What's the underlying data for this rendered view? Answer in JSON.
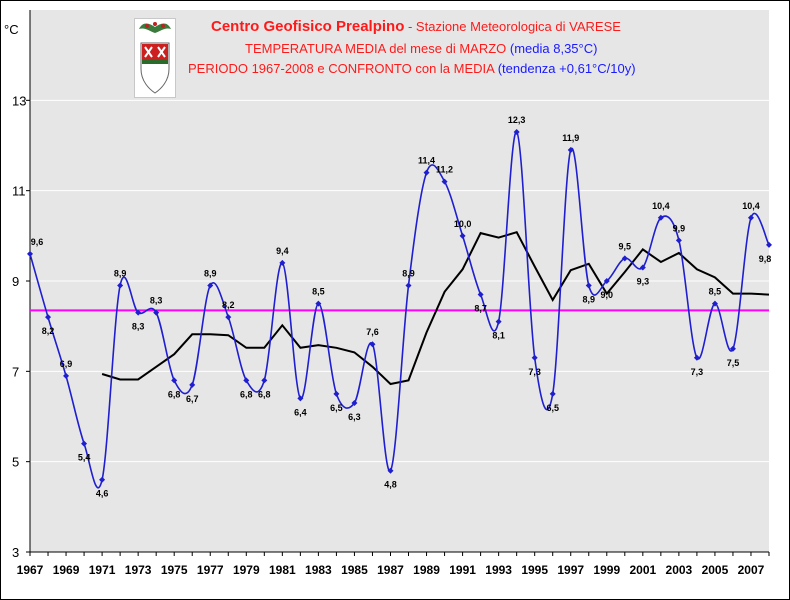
{
  "header": {
    "line1_bold": "Centro Geofisico Prealpino",
    "line1_rest": " - Stazione Meteorologica di VARESE",
    "line2_red": "TEMPERATURA MEDIA del mese di MARZO",
    "line2_blue": "(media 8,35°C)",
    "line3_red": "PERIODO 1967-2008 e CONFRONTO con la MEDIA",
    "line3_blue": "(tendenza +0,61°C/10y)"
  },
  "colors": {
    "title_red": "#ff1a1a",
    "title_blue": "#1a1aff",
    "series": "#1f1fd0",
    "moving_avg": "#000000",
    "mean_line": "#ff00ff",
    "plot_bg": "#e6e6e6"
  },
  "chart_data": {
    "type": "line",
    "unit_label": "°C",
    "ylim": [
      3,
      15
    ],
    "y_ticks": [
      3,
      5,
      7,
      9,
      11,
      13
    ],
    "xlim": [
      1967,
      2008
    ],
    "x_ticks": [
      1967,
      1969,
      1971,
      1973,
      1975,
      1977,
      1979,
      1981,
      1983,
      1985,
      1987,
      1989,
      1991,
      1993,
      1995,
      1997,
      1999,
      2001,
      2003,
      2005,
      2007
    ],
    "grid": "horizontal",
    "series": [
      {
        "x": [
          1967,
          1968,
          1969,
          1970,
          1971,
          1972,
          1973,
          1974,
          1975,
          1976,
          1977,
          1978,
          1979,
          1980,
          1981,
          1982,
          1983,
          1984,
          1985,
          1986,
          1987,
          1988,
          1989,
          1990,
          1991,
          1992,
          1993,
          1994,
          1995,
          1996,
          1997,
          1998,
          1999,
          2000,
          2001,
          2002,
          2003,
          2004,
          2005,
          2006,
          2007,
          2008
        ],
        "values": [
          9.6,
          8.2,
          6.9,
          5.4,
          4.6,
          8.9,
          8.3,
          8.3,
          6.8,
          6.7,
          8.9,
          8.2,
          6.8,
          6.8,
          9.4,
          6.4,
          8.5,
          6.5,
          6.3,
          7.6,
          4.8,
          8.9,
          11.4,
          11.2,
          10.0,
          8.7,
          8.1,
          12.3,
          7.3,
          6.5,
          11.9,
          8.9,
          9.0,
          9.5,
          9.3,
          10.4,
          9.9,
          7.3,
          8.5,
          7.5,
          10.4,
          9.8
        ],
        "labels": [
          "9,6",
          "8,2",
          "6,9",
          "5,4",
          "4,6",
          "8,9",
          "8,3",
          "8,3",
          "6,8",
          "6,7",
          "8,9",
          "8,2",
          "6,8",
          "6,8",
          "9,4",
          "6,4",
          "8,5",
          "6,5",
          "6,3",
          "7,6",
          "4,8",
          "8,9",
          "11,4",
          "11,2",
          "10,0",
          "8,7",
          "8,1",
          "12,3",
          "7,3",
          "6,5",
          "11,9",
          "8,9",
          "9,0",
          "9,5",
          "9,3",
          "10,4",
          "9,9",
          "7,3",
          "8,5",
          "7,5",
          "10,4",
          "9,8"
        ]
      },
      {
        "x": [
          1971,
          1972,
          1973,
          1974,
          1975,
          1976,
          1977,
          1978,
          1979,
          1980,
          1981,
          1982,
          1983,
          1984,
          1985,
          1986,
          1987,
          1988,
          1989,
          1990,
          1991,
          1992,
          1993,
          1994,
          1995,
          1996,
          1997,
          1998,
          1999,
          2000,
          2001,
          2002,
          2003,
          2004,
          2005,
          2006,
          2007,
          2008
        ],
        "values": [
          6.94,
          6.82,
          6.82,
          7.1,
          7.38,
          7.82,
          7.82,
          7.8,
          7.52,
          7.52,
          8.02,
          7.52,
          7.58,
          7.52,
          7.42,
          7.1,
          6.72,
          6.8,
          7.86,
          8.76,
          9.26,
          10.06,
          9.96,
          10.08,
          9.32,
          8.58,
          9.24,
          9.38,
          8.72,
          9.2,
          9.7,
          9.42,
          9.62,
          9.26,
          9.08,
          8.72,
          8.72,
          8.7
        ]
      },
      {
        "x": [
          1967,
          2008
        ],
        "values": [
          8.35,
          8.35
        ]
      }
    ]
  }
}
